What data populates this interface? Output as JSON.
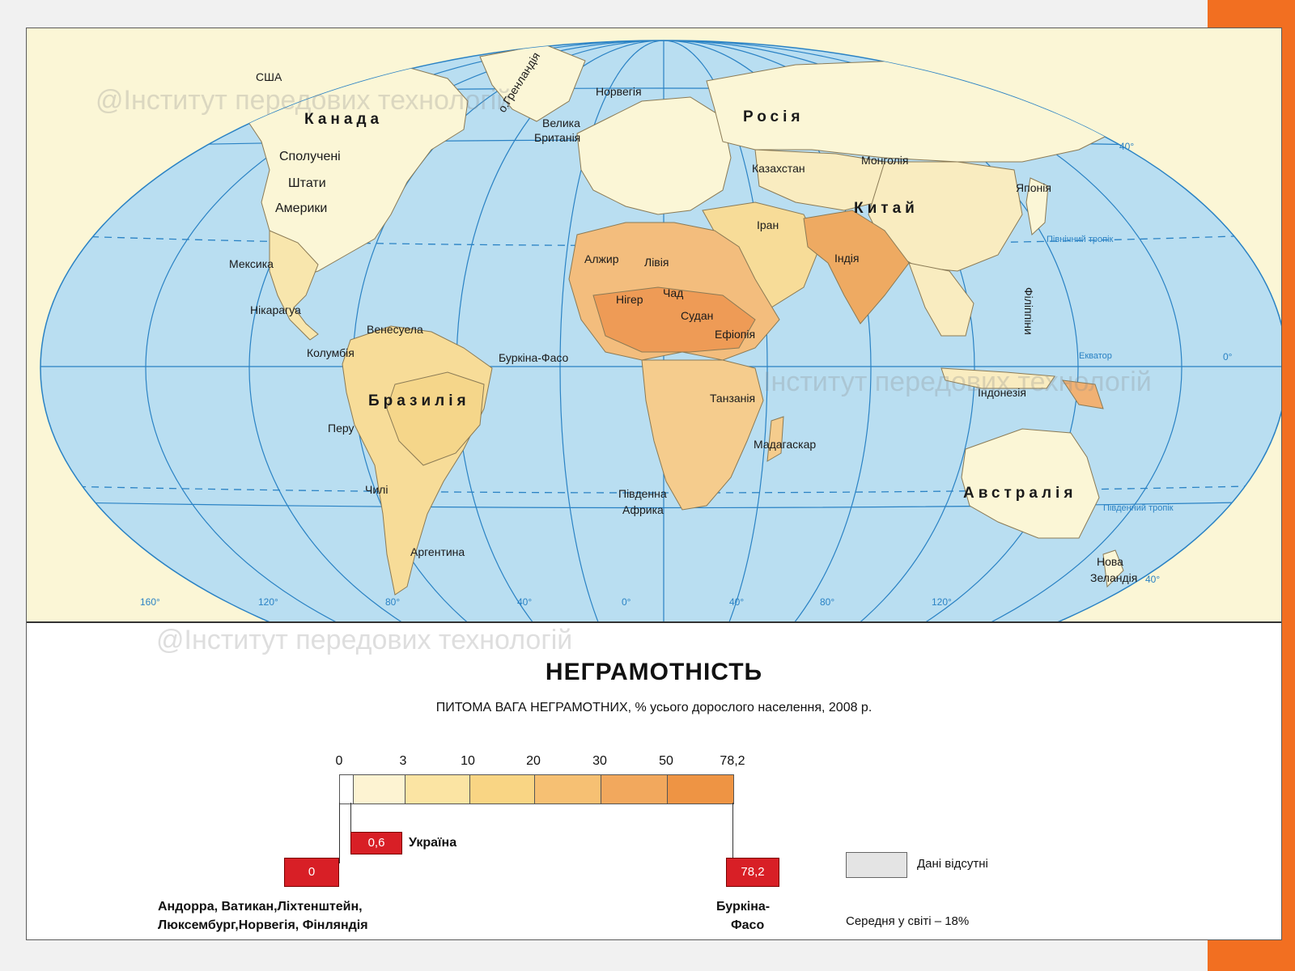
{
  "map": {
    "watermarks": [
      "@Інститут передових технологій",
      "Інститут передових технологій",
      "@Інститут передових технологій"
    ],
    "countries": {
      "usa": "США",
      "greenland": "о.Гренландія",
      "canada": "Канада",
      "norway": "Норвегія",
      "russia": "Росія",
      "uk_1": "Велика",
      "uk_2": "Британія",
      "us_1": "Сполучені",
      "us_2": "Штати",
      "us_3": "Америки",
      "kazakhstan": "Казахстан",
      "mongolia": "Монголія",
      "japan": "Японія",
      "china": "Китай",
      "iran": "Іран",
      "mexico": "Мексика",
      "algeria": "Алжир",
      "libya": "Лівія",
      "india": "Індія",
      "chad": "Чад",
      "niger": "Нігер",
      "sudan": "Судан",
      "nicaragua": "Нікарагуа",
      "venezuela": "Венесуела",
      "ethiopia": "Ефіопія",
      "philippines": "Філіппіни",
      "colombia": "Колумбія",
      "burkina": "Буркіна-Фасо",
      "brazil": "Бразилія",
      "tanzania": "Танзанія",
      "indonesia": "Індонезія",
      "peru": "Перу",
      "madagascar": "Мадагаскар",
      "south_africa_1": "Південна",
      "south_africa_2": "Африка",
      "chile": "Чилі",
      "australia": "Австралія",
      "argentina": "Аргентина",
      "nz_1": "Нова",
      "nz_2": "Зеландія"
    },
    "lines": {
      "north_tropic": "Північний тропік",
      "equator": "Екватор",
      "south_tropic": "Південний тропік"
    },
    "degrees": {
      "lat_n40": "40°",
      "lat_0": "0°",
      "lat_s40": "40°",
      "lon": [
        "160°",
        "120°",
        "80°",
        "40°",
        "0°",
        "40°",
        "80°",
        "120°"
      ]
    }
  },
  "legend": {
    "title": "НЕГРАМОТНІСТЬ",
    "subtitle": "ПИТОМА ВАГА НЕГРАМОТНИХ, % усього дорослого населення, 2008 р.",
    "scale": {
      "ticks": [
        "0",
        "3",
        "10",
        "20",
        "30",
        "50",
        "78,2"
      ],
      "colors": [
        "#fdf3d2",
        "#fbe4a3",
        "#f9d584",
        "#f6c073",
        "#f2a85d",
        "#ee9444"
      ]
    },
    "highlights": {
      "ukraine_value": "0,6",
      "ukraine_label": "Україна",
      "min_value": "0",
      "min_countries_1": "Андорра, Ватикан,Ліхтенштейн,",
      "min_countries_2": "Люксембург,Норвегія, Фінляндія",
      "max_value": "78,2",
      "max_country_1": "Буркіна-",
      "max_country_2": "Фасо"
    },
    "no_data": "Дані відсутні",
    "world_average": "Середня у світі – 18%"
  },
  "colors": {
    "accent": "#f26f21",
    "ocean": "#b9def1",
    "grid": "#2a82c4",
    "highlight": "#d81f26",
    "no_data": "#e4e4e4"
  }
}
